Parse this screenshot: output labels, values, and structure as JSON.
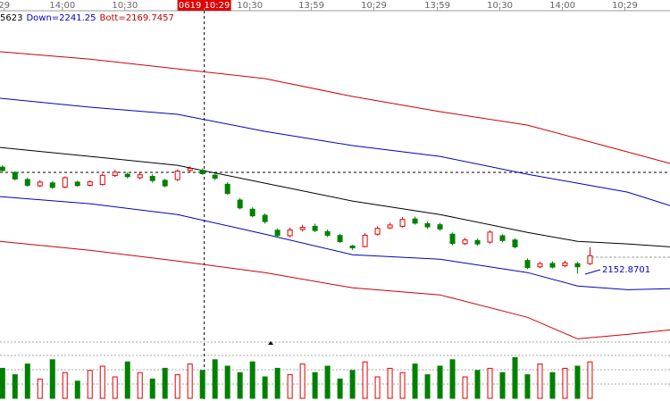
{
  "chart_data": {
    "type": "candlestick",
    "legend": [
      {
        "text": "5623",
        "color": "#000000"
      },
      {
        "text": "Down=2241.25",
        "color": "#0000c0"
      },
      {
        "text": "Bott=2169.7457",
        "color": "#c00000"
      }
    ],
    "xlim": [
      -0.2,
      53.4
    ],
    "ylim": [
      2140,
      2265
    ],
    "xticks": [
      {
        "value": 0.14,
        "label": "29"
      },
      {
        "value": 4.79,
        "label": "14:00"
      },
      {
        "value": 9.79,
        "label": "10:30"
      },
      {
        "value": 16.14,
        "label": "0619 10:29"
      },
      {
        "value": 19.79,
        "label": "10:30"
      },
      {
        "value": 24.71,
        "label": "13:59"
      },
      {
        "value": 29.71,
        "label": "10:29"
      },
      {
        "value": 34.79,
        "label": "13:59"
      },
      {
        "value": 39.79,
        "label": "10:30"
      },
      {
        "value": 44.79,
        "label": "14:00"
      },
      {
        "value": 49.79,
        "label": "10:29"
      }
    ],
    "crosshair": {
      "x": 16.14,
      "y": 2203.5
    },
    "open": [
      2205.5,
      2203.5,
      2200.8,
      2198.4,
      2199.5,
      2197.9,
      2199.8,
      2198.6,
      2198.9,
      2202.3,
      2202.8,
      2201.5,
      2202.0,
      2200.5,
      2200.8,
      2204.2,
      2204.3,
      2202.5,
      2199.0,
      2193.0,
      2189.5,
      2187.2,
      2181.5,
      2179.4,
      2181.8,
      2183.0,
      2181.0,
      2179.5,
      2175.5,
      2175.3,
      2180.0,
      2182.4,
      2183.0,
      2185.8,
      2184.0,
      2183.6,
      2180.0,
      2176.4,
      2177.6,
      2177.0,
      2179.4,
      2177.8,
      2170.0,
      2167.6,
      2168.9,
      2168.0,
      2168.8,
      2168.8
    ],
    "close": [
      2204.2,
      2201.0,
      2198.6,
      2199.8,
      2197.8,
      2201.5,
      2198.5,
      2199.9,
      2202.4,
      2203.6,
      2201.9,
      2202.6,
      2200.4,
      2198.4,
      2204.0,
      2205.0,
      2203.0,
      2201.3,
      2195.5,
      2190.0,
      2187.0,
      2184.8,
      2179.5,
      2181.6,
      2182.6,
      2181.4,
      2179.6,
      2177.2,
      2174.8,
      2179.6,
      2182.2,
      2183.5,
      2185.6,
      2184.2,
      2182.8,
      2182.0,
      2176.5,
      2177.8,
      2176.3,
      2180.8,
      2177.6,
      2175.2,
      2167.3,
      2168.8,
      2167.5,
      2169.1,
      2167.6,
      2171.8
    ],
    "high": [
      2206.3,
      2204.0,
      2201.5,
      2200.6,
      2200.2,
      2202.0,
      2200.4,
      2200.5,
      2203.0,
      2204.5,
      2203.5,
      2203.4,
      2202.8,
      2201.0,
      2204.6,
      2205.8,
      2205.0,
      2203.0,
      2199.8,
      2193.8,
      2190.2,
      2188.0,
      2182.2,
      2182.5,
      2183.6,
      2184.0,
      2181.8,
      2180.2,
      2176.0,
      2180.4,
      2183.0,
      2184.4,
      2186.5,
      2186.7,
      2184.8,
      2184.4,
      2180.6,
      2178.6,
      2178.4,
      2181.4,
      2180.0,
      2178.4,
      2170.8,
      2169.6,
      2169.7,
      2170.0,
      2169.5,
      2175.0
    ],
    "low": [
      2203.8,
      2200.5,
      2198.0,
      2197.9,
      2197.2,
      2197.5,
      2198.0,
      2198.2,
      2198.5,
      2201.8,
      2201.2,
      2200.8,
      2199.6,
      2197.8,
      2200.2,
      2203.6,
      2202.6,
      2200.5,
      2195.0,
      2189.4,
      2186.4,
      2184.0,
      2178.6,
      2178.8,
      2181.0,
      2180.8,
      2178.9,
      2176.6,
      2174.0,
      2175.0,
      2179.5,
      2181.9,
      2182.5,
      2183.6,
      2182.0,
      2181.3,
      2175.8,
      2175.9,
      2175.6,
      2176.4,
      2177.0,
      2174.6,
      2166.7,
      2167.1,
      2167.0,
      2167.4,
      2165.0,
      2168.3
    ],
    "volume": [
      70,
      55,
      80,
      45,
      90,
      60,
      40,
      65,
      75,
      50,
      85,
      60,
      45,
      70,
      55,
      80,
      65,
      90,
      75,
      60,
      85,
      50,
      70,
      55,
      80,
      60,
      75,
      45,
      65,
      85,
      50,
      70,
      60,
      80,
      55,
      75,
      90,
      50,
      65,
      70,
      60,
      95,
      55,
      80,
      60,
      70,
      75,
      85
    ],
    "vlim": [
      0,
      100
    ],
    "band_x": [
      -0.2,
      7,
      14,
      21,
      28,
      35,
      42,
      46,
      50,
      53.4
    ],
    "bands": [
      {
        "color": "#d00000",
        "values": [
          2249.4,
          2246.6,
          2242.9,
          2239.2,
          2232.4,
          2226.6,
          2221.5,
          2216.4,
          2211.3,
          2206.9
        ]
      },
      {
        "color": "#0000c0",
        "values": [
          2231.7,
          2228.3,
          2225.6,
          2219.1,
          2213.7,
          2209.6,
          2202.8,
          2199.4,
          2196.0,
          2190.9
        ]
      },
      {
        "color": "#000000",
        "values": [
          2213.0,
          2209.6,
          2206.2,
          2199.4,
          2192.6,
          2187.5,
          2180.7,
          2177.3,
          2176.3,
          2175.2
        ]
      },
      {
        "color": "#0000c0",
        "values": [
          2194.3,
          2191.6,
          2187.5,
          2180.0,
          2172.2,
          2170.5,
          2165.4,
          2160.3,
          2158.9,
          2159.3
        ]
      },
      {
        "color": "#d00000",
        "values": [
          2177.3,
          2173.9,
          2169.8,
          2165.4,
          2159.6,
          2156.9,
          2148.4,
          2140.2,
          2141.9,
          2143.6
        ]
      }
    ],
    "last_value": 2152.8701,
    "up_color": "#e00000",
    "down_color": "#008000"
  }
}
